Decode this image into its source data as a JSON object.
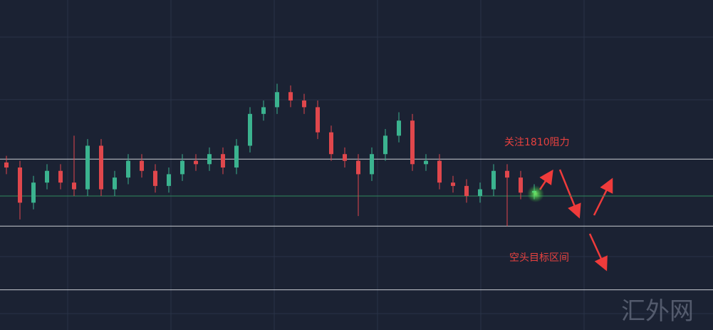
{
  "chart_data": {
    "type": "candlestick",
    "open": [
      1809,
      1807.5,
      1797,
      1803,
      1806.5,
      1803,
      1801,
      1814,
      1801,
      1804.5,
      1809.5,
      1806.5,
      1802,
      1805.5,
      1809.5,
      1808.5,
      1811.5,
      1807.5,
      1814,
      1823.5,
      1825.5,
      1830,
      1827.5,
      1825.5,
      1818,
      1811.5,
      1809.5,
      1805.5,
      1811.5,
      1817,
      1821.5,
      1808.5,
      1809.5,
      1803,
      1802,
      1799,
      1801,
      1806.5,
      1804.5,
      1800
    ],
    "high": [
      1811,
      1809.5,
      1805,
      1808.5,
      1808.5,
      1817,
      1816,
      1816,
      1806.5,
      1811.5,
      1811.5,
      1808.5,
      1807.5,
      1811.5,
      1811.5,
      1813.5,
      1813.5,
      1816,
      1825.5,
      1827.5,
      1832.5,
      1832,
      1829.5,
      1827.5,
      1820,
      1813.5,
      1811.5,
      1813.5,
      1819,
      1824,
      1823.5,
      1811.5,
      1811.5,
      1805,
      1804,
      1803,
      1808.5,
      1808.5,
      1806.5,
      1802.5
    ],
    "low": [
      1805.5,
      1792,
      1795,
      1801,
      1801,
      1799,
      1799,
      1799,
      1799,
      1802.5,
      1804.5,
      1800,
      1800,
      1803.5,
      1806.5,
      1806.5,
      1805.5,
      1805.5,
      1812,
      1821.5,
      1823.5,
      1825.5,
      1823.5,
      1816,
      1809.5,
      1807.5,
      1793,
      1803.5,
      1809.5,
      1815,
      1806.5,
      1806.5,
      1801,
      1800,
      1797,
      1797,
      1799,
      1790,
      1798,
      1798
    ],
    "close": [
      1807.5,
      1797,
      1803,
      1806.5,
      1803,
      1801,
      1814,
      1801,
      1804.5,
      1809.5,
      1806.5,
      1802,
      1805.5,
      1809.5,
      1808.5,
      1811.5,
      1807.5,
      1814,
      1823.5,
      1825.5,
      1830,
      1827.5,
      1825.5,
      1818,
      1811.5,
      1809.5,
      1805.5,
      1811.5,
      1817,
      1821.5,
      1808.5,
      1809.5,
      1803,
      1802,
      1799,
      1801,
      1806.5,
      1804.5,
      1800,
      1800.5
    ],
    "up_color": "#3bb38f",
    "down_color": "#e0474c",
    "ylim": [
      1759,
      1857.5
    ],
    "levels": [
      1810,
      1790,
      1771
    ],
    "price_line": 1799,
    "annotations": [
      "关注1810阻力",
      "空头目标区间"
    ],
    "watermark": "汇外网"
  }
}
